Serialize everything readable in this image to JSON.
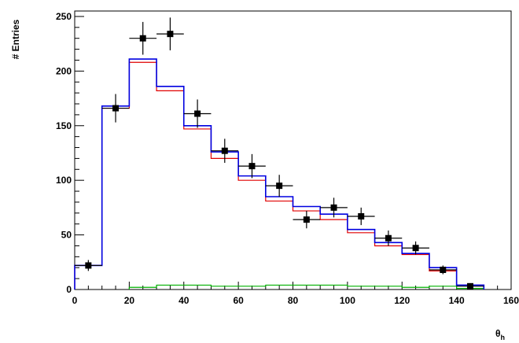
{
  "chart_data": {
    "type": "histogram",
    "xlabel": "θ_h",
    "ylabel": "# Entries",
    "xlim": [
      0,
      160
    ],
    "ylim": [
      0,
      255
    ],
    "grid": false,
    "xticks": [
      "0",
      "20",
      "40",
      "60",
      "80",
      "100",
      "120",
      "140",
      "160"
    ],
    "yticks": [
      "0",
      "50",
      "100",
      "150",
      "200",
      "250"
    ],
    "bin_edges": [
      0,
      10,
      20,
      30,
      40,
      50,
      60,
      70,
      80,
      90,
      100,
      110,
      120,
      130,
      140,
      150
    ],
    "series": [
      {
        "kind": "step",
        "color": "#e00000",
        "values": [
          22,
          166,
          208,
          182,
          147,
          120,
          100,
          81,
          72,
          64,
          52,
          40,
          32,
          17,
          4
        ]
      },
      {
        "kind": "step",
        "color": "#0000e0",
        "values": [
          22,
          168,
          211,
          186,
          150,
          126,
          104,
          85,
          76,
          69,
          55,
          43,
          33,
          20,
          4
        ]
      },
      {
        "kind": "step",
        "color": "#00b000",
        "values": [
          0,
          0,
          2,
          4,
          4,
          3,
          3,
          4,
          4,
          4,
          3,
          3,
          2,
          3,
          1
        ]
      },
      {
        "kind": "points",
        "color": "#000000",
        "x": [
          5,
          15,
          25,
          35,
          45,
          55,
          65,
          75,
          85,
          95,
          105,
          115,
          125,
          135,
          145
        ],
        "y": [
          22,
          166,
          230,
          234,
          161,
          127,
          113,
          95,
          64,
          75,
          67,
          47,
          38,
          18,
          3
        ],
        "yerr": [
          5,
          13,
          15,
          15,
          13,
          11,
          11,
          10,
          8,
          9,
          8,
          7,
          6,
          4,
          2
        ],
        "xerr": 5
      }
    ]
  }
}
